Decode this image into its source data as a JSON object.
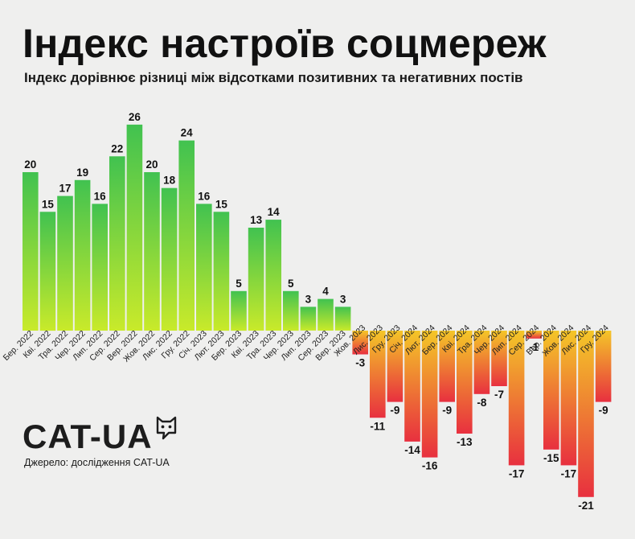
{
  "header": {
    "title": "Індекс настроїв соцмереж",
    "subtitle": "Індекс дорівнює різниці між відсотками позитивних та негативних постів"
  },
  "footer": {
    "logo_text": "CAT-UA",
    "logo_icon": "cat-head-icon",
    "source": "Джерело: дослідження CAT-UA"
  },
  "colors": {
    "positive_top": "#41c250",
    "positive_bottom": "#c9ea2a",
    "negative_top": "#f4c628",
    "negative_bottom": "#e8303f",
    "background": "#efefee"
  },
  "chart_data": {
    "type": "bar",
    "title": "Індекс настроїв соцмереж",
    "subtitle": "Індекс дорівнює різниці між відсотками позитивних та негативних постів",
    "categories": [
      "Бер. 2022",
      "Кві. 2022",
      "Тра. 2022",
      "Чер. 2022",
      "Лип. 2022",
      "Сер. 2022",
      "Вер. 2022",
      "Жов. 2022",
      "Лис. 2022",
      "Гру. 2022",
      "Січ. 2023",
      "Лют. 2023",
      "Бер. 2023",
      "Кві. 2023",
      "Тра. 2023",
      "Чер. 2023",
      "Лип. 2023",
      "Сер. 2023",
      "Вер. 2023",
      "Жов. 2023",
      "Лис. 2023",
      "Гру. 2023",
      "Січ. 2024",
      "Лют. 2024",
      "Бер. 2024",
      "Кві. 2024",
      "Тра. 2024",
      "Чер. 2024",
      "Лип. 2024",
      "Сер. 2024",
      "Вер. 2024",
      "Жов. 2024",
      "Лис. 2024",
      "Гру. 2024"
    ],
    "values": [
      20,
      15,
      17,
      19,
      16,
      22,
      26,
      20,
      18,
      24,
      16,
      15,
      5,
      13,
      14,
      5,
      3,
      4,
      3,
      -3,
      -11,
      -9,
      -14,
      -16,
      -9,
      -13,
      -8,
      -7,
      -17,
      -1,
      -15,
      -17,
      -21,
      -9
    ],
    "xlabel": "",
    "ylabel": "",
    "grid": false,
    "legend": "none",
    "data_labels": true
  }
}
